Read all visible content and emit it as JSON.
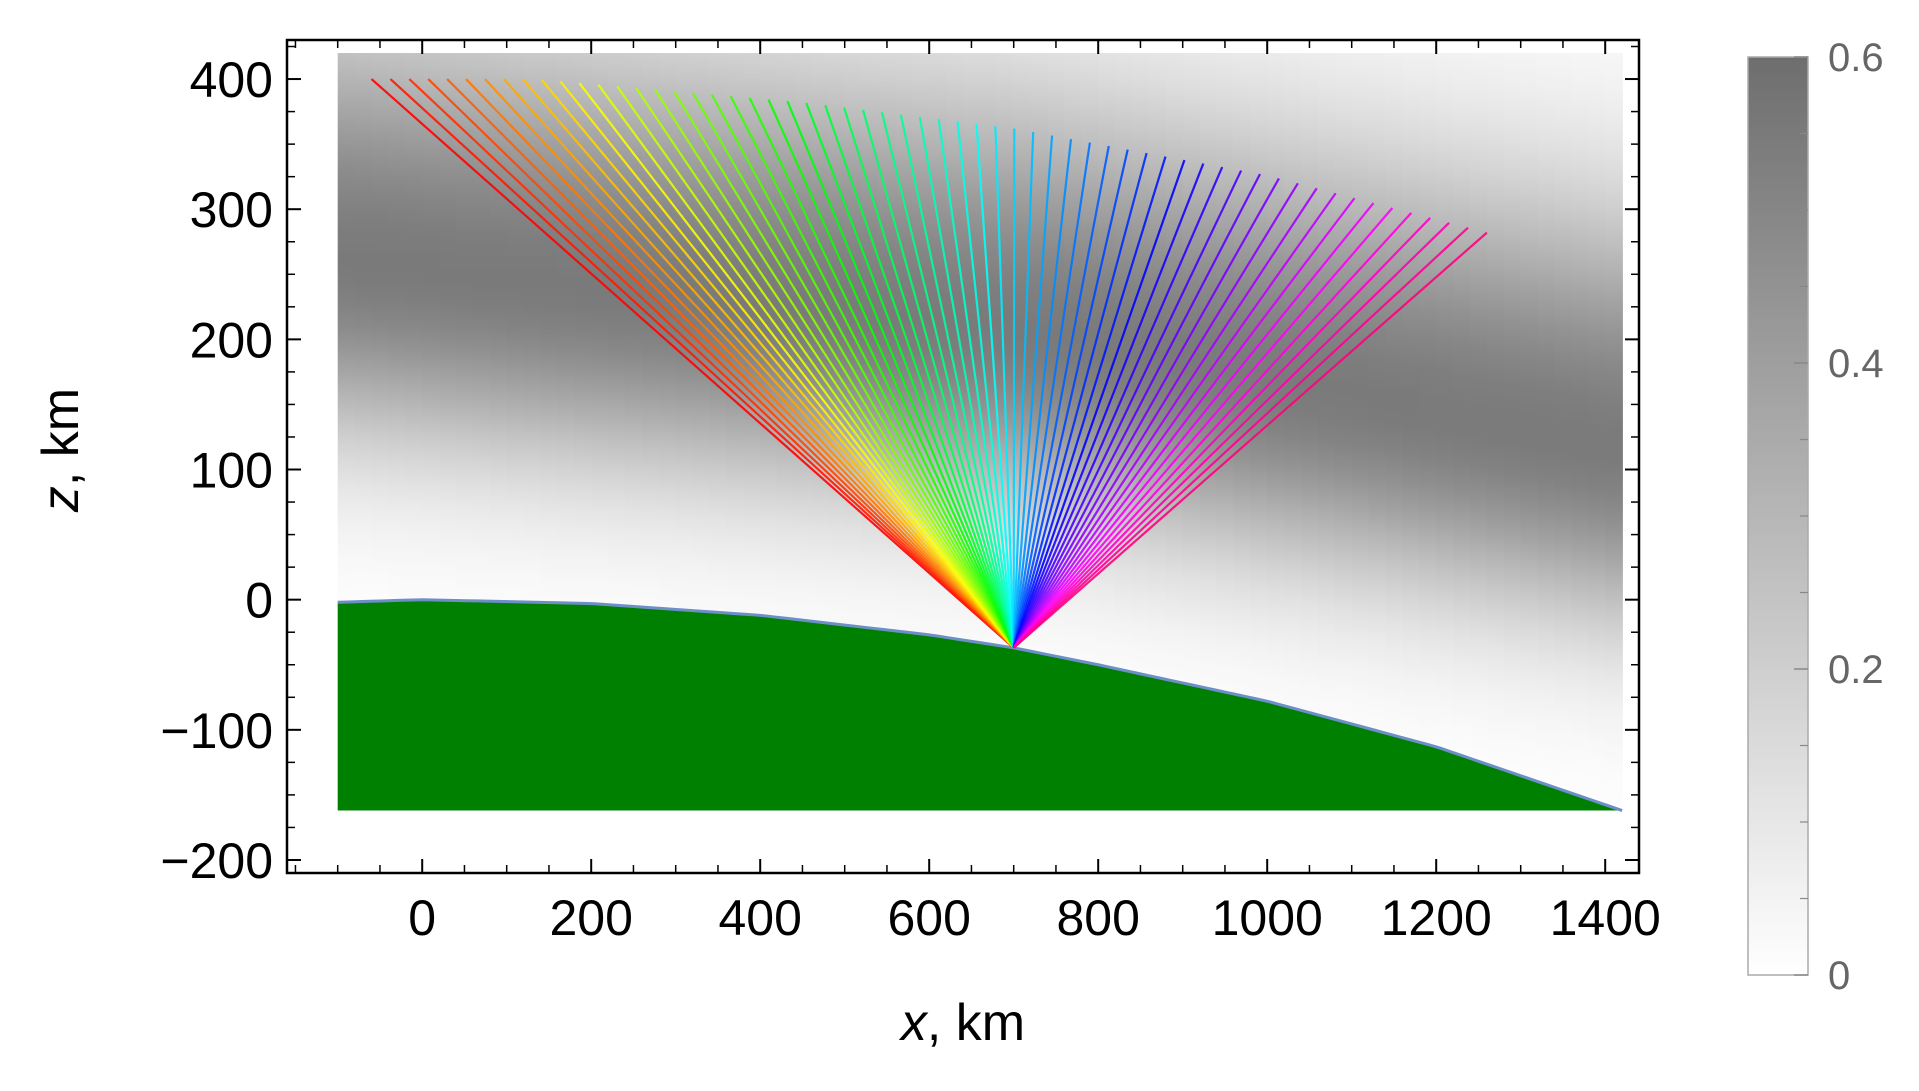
{
  "chart_data": {
    "type": "heatmap",
    "title": "",
    "xlabel": {
      "var": "x",
      "unit": ", km"
    },
    "ylabel": {
      "var": "z",
      "unit": ", km"
    },
    "xlim": [
      -160,
      1440
    ],
    "ylim": [
      -210,
      430
    ],
    "xticks": [
      0,
      200,
      400,
      600,
      800,
      1000,
      1200,
      1400
    ],
    "xtick_labels": [
      "0",
      "200",
      "400",
      "600",
      "800",
      "1000",
      "1200",
      "1400"
    ],
    "yticks": [
      -200,
      -100,
      0,
      100,
      200,
      300,
      400
    ],
    "ytick_labels": [
      "−200",
      "−100",
      "0",
      "100",
      "200",
      "300",
      "400"
    ],
    "grid": false,
    "heatmap": {
      "x_range": [
        -100,
        1420
      ],
      "z_top": 420,
      "layer": {
        "peak_height_at_x": [
          [
            -100,
            260
          ],
          [
            700,
            205
          ],
          [
            1420,
            115
          ]
        ],
        "peak_value": 0.55,
        "upper_width_km": 130,
        "lower_width_km": 95
      },
      "colormap": "white-to-gray"
    },
    "ground": {
      "color": "#008000",
      "edge_color": "#6d8fc8",
      "x_range": [
        -100,
        1420
      ],
      "bottom": -162,
      "surface_vertex_x": 0,
      "surface_x": [
        -100,
        0,
        200,
        400,
        600,
        700,
        800,
        1000,
        1200,
        1420
      ],
      "surface_z": [
        -2,
        0,
        -3,
        -12,
        -27,
        -37,
        -50,
        -78,
        -113,
        -162
      ]
    },
    "rays": {
      "origin": {
        "x": 700,
        "z": -37
      },
      "count": 60,
      "colormap": "hue (red → yellow → green → cyan → blue → magenta → red)",
      "endpoint_x": [
        -60,
        1260
      ],
      "endpoint_z_curve": [
        [
          -60,
          400
        ],
        [
          130,
          400
        ],
        [
          450,
          382
        ],
        [
          700,
          362
        ],
        [
          1000,
          326
        ],
        [
          1260,
          282
        ]
      ]
    },
    "colorbar": {
      "min": 0,
      "max": 0.6,
      "ticks": [
        0,
        0.2,
        0.4,
        0.6
      ],
      "tick_labels": [
        "0",
        "0.2",
        "0.4",
        "0.6"
      ],
      "colors": [
        "#ffffff",
        "#6e6e6e"
      ]
    }
  }
}
